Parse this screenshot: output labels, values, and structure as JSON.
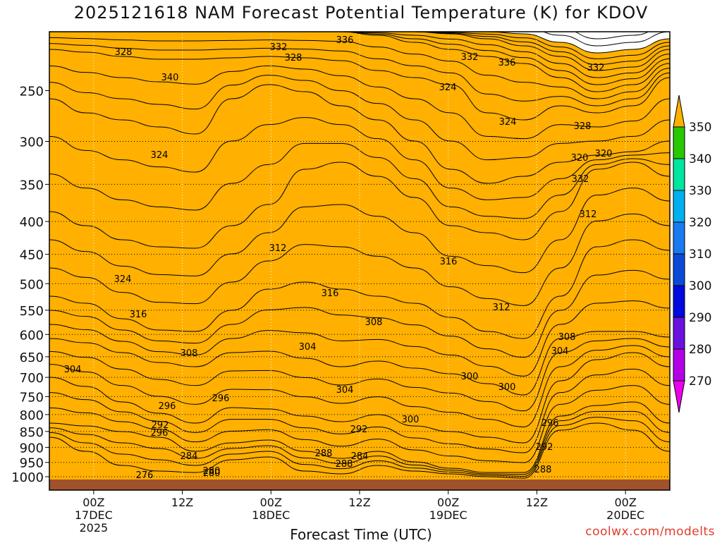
{
  "chart_data": {
    "type": "heatmap",
    "title": "2025121618 NAM Forecast Potential Temperature (K) for KDOV",
    "xlabel": "Forecast Time (UTC)",
    "ylabel": "",
    "source_label": "coolwx.com/modelts",
    "y_ticks": [
      250,
      300,
      350,
      400,
      450,
      500,
      550,
      600,
      650,
      700,
      750,
      800,
      850,
      900,
      950,
      1000
    ],
    "y_scale": "log-pressure",
    "y_inverted": true,
    "x_ticks": [
      {
        "value": 6,
        "label": "00Z",
        "date": "17DEC",
        "year": "2025"
      },
      {
        "value": 18,
        "label": "12Z",
        "date": "",
        "year": ""
      },
      {
        "value": 30,
        "label": "00Z",
        "date": "18DEC",
        "year": ""
      },
      {
        "value": 42,
        "label": "12Z",
        "date": "",
        "year": ""
      },
      {
        "value": 54,
        "label": "00Z",
        "date": "19DEC",
        "year": ""
      },
      {
        "value": 66,
        "label": "12Z",
        "date": "",
        "year": ""
      },
      {
        "value": 78,
        "label": "00Z",
        "date": "20DEC",
        "year": ""
      }
    ],
    "xlim": [
      0,
      84
    ],
    "colorbar": {
      "levels": [
        270,
        280,
        290,
        300,
        310,
        320,
        330,
        340,
        350
      ],
      "colors": [
        "#ee00ee",
        "#b300e6",
        "#6a11e0",
        "#0009e0",
        "#0a4ad6",
        "#1a7af0",
        "#00b0f0",
        "#00e5a0",
        "#28c800",
        "#ccee00",
        "#ffff40",
        "#ffb000"
      ]
    },
    "contour_labels": [
      "328",
      "332",
      "336",
      "332",
      "328",
      "324",
      "336",
      "332",
      "340",
      "324",
      "328",
      "324",
      "320",
      "320",
      "332",
      "324",
      "316",
      "312",
      "312",
      "316",
      "316",
      "312",
      "308",
      "308",
      "304",
      "304",
      "308",
      "304",
      "300",
      "304",
      "300",
      "296",
      "296",
      "300",
      "292",
      "296",
      "292",
      "296",
      "288",
      "292",
      "288",
      "284",
      "284",
      "280",
      "288",
      "276",
      "280"
    ],
    "grid": true,
    "ground_color": "#a0522d"
  }
}
